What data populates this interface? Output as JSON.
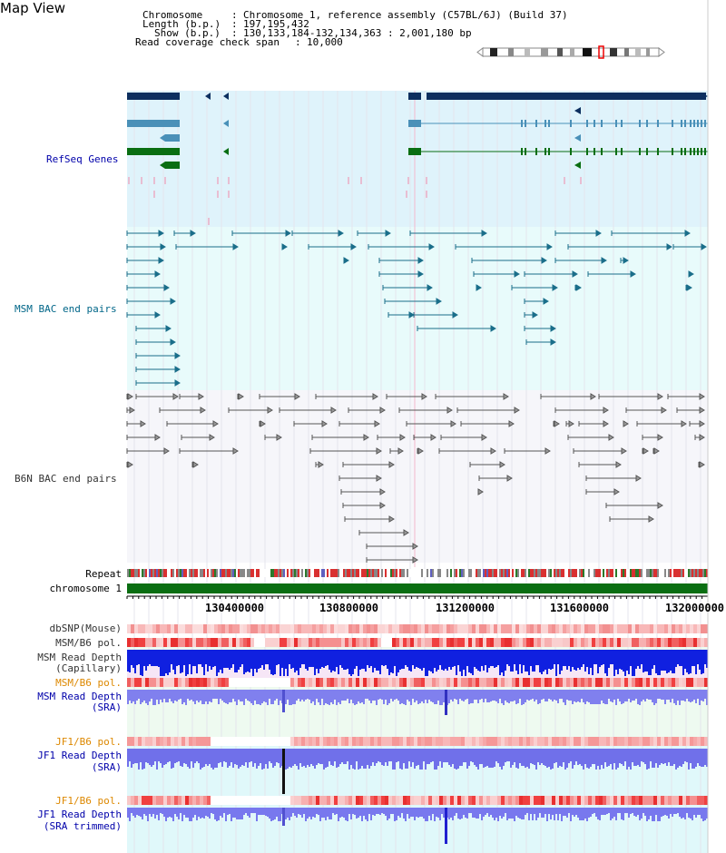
{
  "app": {
    "title": "Map View"
  },
  "header": {
    "chromosome_label": "Chromosome",
    "chromosome_value": "Chromosome 1, reference assembly (C57BL/6J) (Build 37)",
    "length_label": "Length (b.p.)",
    "length_value": "197,195,432",
    "show_label": "Show (b.p.)",
    "show_value": "130,133,184-132,134,363 : 2,001,180 bp",
    "coverage_label": "Read coverage check span",
    "coverage_value": "10,000"
  },
  "tracks": {
    "refseq": "RefSeq Genes",
    "msm_bac": "MSM BAC end pairs",
    "b6n_bac": "B6N BAC end pairs",
    "repeat": "Repeat",
    "chromosome": "chromosome 1",
    "dbsnp": "dbSNP(Mouse)",
    "msm_b6_pol_1": "MSM/B6 pol.",
    "msm_read_depth_cap_1": "MSM Read Depth",
    "msm_read_depth_cap_2": "(Capillary)",
    "msm_b6_pol_2": "MSM/B6 pol.",
    "msm_read_depth_sra_1": "MSM Read Depth",
    "msm_read_depth_sra_2": "(SRA)",
    "jf1_b6_pol_1": "JF1/B6 pol.",
    "jf1_read_depth_sra_1": "JF1 Read Depth",
    "jf1_read_depth_sra_2": "(SRA)",
    "jf1_b6_pol_2": "JF1/B6 pol.",
    "jf1_read_depth_trim_1": "JF1 Read Depth",
    "jf1_read_depth_trim_2": "(SRA trimmed)"
  },
  "axis": {
    "ticks": [
      "130400000",
      "130800000",
      "131200000",
      "131600000",
      "132000000"
    ]
  },
  "colors": {
    "refseq_bg": "#dff3fb",
    "bac_bg": "#e8fbfb",
    "b6n_bg": "#f4f4f8",
    "navy_gene": "#0d2f5f",
    "steel_gene": "#4a90b8",
    "green_gene": "#0a6e12",
    "chromosome_bar": "#0a6e12",
    "snp_red": "#f03030",
    "depth_blue": "#0010dd",
    "depth_light_blue": "#7070f0"
  }
}
